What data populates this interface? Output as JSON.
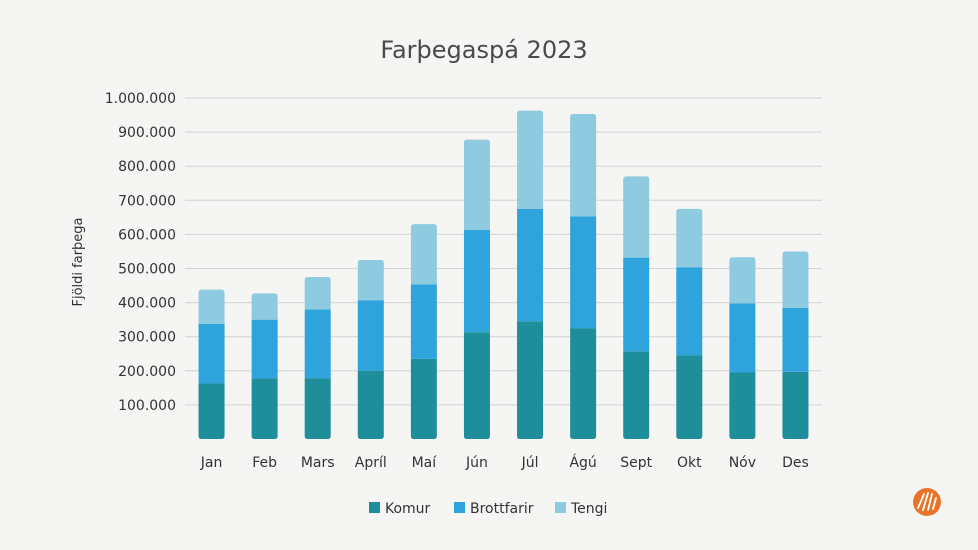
{
  "chart_data": {
    "type": "bar",
    "stacked": true,
    "title": "Farþegaspá 2023",
    "xlabel": "",
    "ylabel": "Fjöldi farþega",
    "ylim": [
      0,
      1000000
    ],
    "yticks": [
      "100.000",
      "200.000",
      "300.000",
      "400.000",
      "500.000",
      "600.000",
      "700.000",
      "800.000",
      "900.000",
      "1.000.000"
    ],
    "yticks_values": [
      100000,
      200000,
      300000,
      400000,
      500000,
      600000,
      700000,
      800000,
      900000,
      1000000
    ],
    "grid": true,
    "legend": "bottom",
    "categories": [
      "Jan",
      "Feb",
      "Mars",
      "Apríl",
      "Maí",
      "Jún",
      "Júl",
      "Ágú",
      "Sept",
      "Okt",
      "Nóv",
      "Des"
    ],
    "series": [
      {
        "name": "Komur",
        "color": "#1e8e9a",
        "values": [
          163000,
          178000,
          178000,
          200000,
          235000,
          313000,
          345000,
          325000,
          257000,
          245000,
          195000,
          197000
        ]
      },
      {
        "name": "Brottfarir",
        "color": "#2fa3dc",
        "values": [
          175000,
          172000,
          202000,
          207000,
          218000,
          300000,
          330000,
          328000,
          275000,
          258000,
          203000,
          188000
        ]
      },
      {
        "name": "Tengi",
        "color": "#8fcbe0",
        "values": [
          100000,
          77000,
          95000,
          118000,
          177000,
          265000,
          288000,
          300000,
          238000,
          172000,
          135000,
          165000
        ]
      }
    ]
  },
  "logo": {
    "name": "isavia-logo-icon",
    "color": "#e8742a"
  }
}
